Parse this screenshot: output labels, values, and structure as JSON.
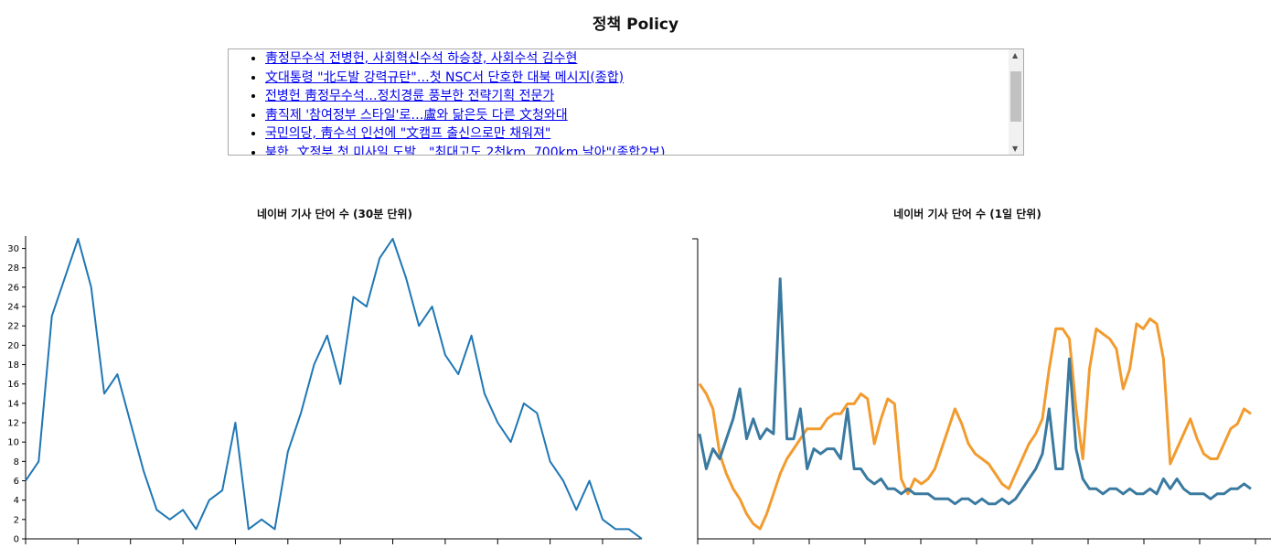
{
  "page": {
    "title": "정책 Policy"
  },
  "news": {
    "items": [
      "靑정무수석 전병헌, 사회혁신수석 하승창, 사회수석 김수현",
      "文대통령 \"北도발 강력규탄\"…첫 NSC서 단호한 대북 메시지(종합)",
      "전병헌 靑정무수석…정치경륜 풍부한 전략기획 전문가",
      "靑직제 '참여정부 스타일'로…盧와 닮은듯 다른 文청와대",
      "국민의당, 靑수석 인선에 \"文캠프 출신으로만 채워져\"",
      "북한, 文정부 첫 미사일 도발…\"최대고도 2천km, 700km 날아\"(종합2보)"
    ]
  },
  "chart_data": [
    {
      "type": "line",
      "title": "네이버 기사 단어 수 (30분 단위)",
      "xlabel": "",
      "ylabel": "",
      "ylim": [
        0,
        31
      ],
      "yticks": [
        0,
        2,
        4,
        6,
        8,
        10,
        12,
        14,
        16,
        18,
        20,
        22,
        24,
        26,
        28,
        30
      ],
      "x": [
        0,
        1,
        2,
        3,
        4,
        5,
        6,
        7,
        8,
        9,
        10,
        11,
        12,
        13,
        14,
        15,
        16,
        17,
        18,
        19,
        20,
        21,
        22,
        23,
        24,
        25,
        26,
        27,
        28,
        29,
        30,
        31,
        32,
        33,
        34,
        35,
        36,
        37,
        38,
        39,
        40,
        41,
        42,
        43,
        44,
        45,
        46,
        47
      ],
      "series": [
        {
          "color": "#1f77b4",
          "values": [
            6,
            8,
            23,
            27,
            31,
            26,
            15,
            17,
            12,
            7,
            3,
            2,
            3,
            1,
            4,
            5,
            12,
            1,
            2,
            1,
            9,
            13,
            18,
            21,
            16,
            25,
            24,
            29,
            31,
            27,
            22,
            24,
            19,
            17,
            21,
            15,
            12,
            10,
            14,
            13,
            8,
            6,
            3,
            6,
            2,
            1,
            1,
            0
          ]
        }
      ]
    },
    {
      "type": "line",
      "title": "네이버 기사 단어 수 (1일 단위)",
      "xlabel": "",
      "ylabel": "",
      "ylim": [
        0,
        30
      ],
      "series": [
        {
          "color": "#f29b2f",
          "values": [
            15.5,
            14.5,
            13,
            8.5,
            6.5,
            5,
            4,
            2.5,
            1.5,
            1,
            2.5,
            4.5,
            6.5,
            8,
            9,
            10,
            11,
            11,
            11,
            12,
            12.5,
            12.5,
            13.5,
            13.5,
            14.5,
            14,
            9.5,
            12,
            14,
            13.5,
            6,
            4.5,
            6,
            5.5,
            6,
            7,
            9,
            11,
            13,
            11.5,
            9.5,
            8.5,
            8,
            7.5,
            6.5,
            5.5,
            5,
            6.5,
            8,
            9.5,
            10.5,
            12,
            17,
            21,
            21,
            20,
            13,
            8,
            17,
            21,
            20.5,
            20,
            19,
            15,
            17,
            21.5,
            21,
            22,
            21.5,
            18,
            7.5,
            9,
            10.5,
            12,
            10,
            8.5,
            8,
            8,
            9.5,
            11,
            11.5,
            13,
            12.5
          ]
        },
        {
          "color": "#3b7aa0",
          "values": [
            10.5,
            7,
            9,
            8,
            10,
            12,
            15,
            10,
            12,
            10,
            11,
            10.5,
            26,
            10,
            10,
            13,
            7,
            9,
            8.5,
            9,
            9,
            8,
            13,
            7,
            7,
            6,
            5.5,
            6,
            5,
            5,
            4.5,
            5,
            4.5,
            4.5,
            4.5,
            4,
            4,
            4,
            3.5,
            4,
            4,
            3.5,
            4,
            3.5,
            3.5,
            4,
            3.5,
            4,
            5,
            6,
            7,
            8.5,
            13,
            7,
            7,
            18,
            9,
            6,
            5,
            5,
            4.5,
            5,
            5,
            4.5,
            5,
            4.5,
            4.5,
            5,
            4.5,
            6,
            5,
            6,
            5,
            4.5,
            4.5,
            4.5,
            4,
            4.5,
            4.5,
            5,
            5,
            5.5,
            5
          ]
        }
      ]
    }
  ]
}
